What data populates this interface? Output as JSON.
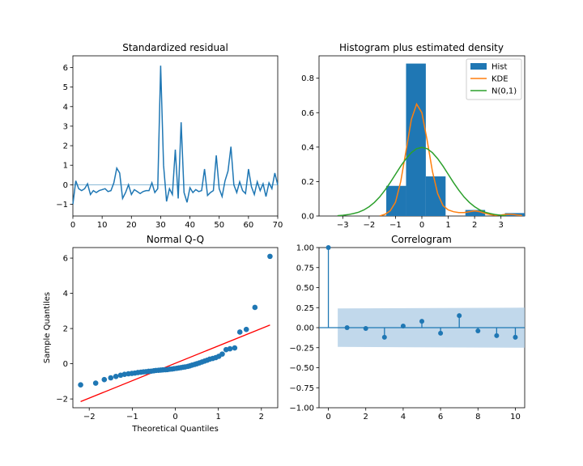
{
  "chart_data": [
    {
      "type": "line",
      "title": "Standardized residual",
      "xlabel": "",
      "ylabel": "",
      "xlim": [
        0,
        70
      ],
      "ylim": [
        -1.6,
        6.6
      ],
      "xticks": [
        0,
        10,
        20,
        30,
        40,
        50,
        60,
        70
      ],
      "yticks": [
        -1,
        0,
        1,
        2,
        3,
        4,
        5,
        6
      ],
      "x": [
        0,
        1,
        2,
        3,
        4,
        5,
        6,
        7,
        8,
        9,
        10,
        11,
        12,
        13,
        14,
        15,
        16,
        17,
        18,
        19,
        20,
        21,
        22,
        23,
        24,
        25,
        26,
        27,
        28,
        29,
        30,
        31,
        32,
        33,
        34,
        35,
        36,
        37,
        38,
        39,
        40,
        41,
        42,
        43,
        44,
        45,
        46,
        47,
        48,
        49,
        50,
        51,
        52,
        53,
        54,
        55,
        56,
        57,
        58,
        59,
        60,
        61,
        62,
        63,
        64,
        65,
        66,
        67,
        68,
        69,
        70
      ],
      "y": [
        -1.0,
        0.2,
        -0.2,
        -0.3,
        -0.2,
        0.05,
        -0.5,
        -0.3,
        -0.4,
        -0.3,
        -0.25,
        -0.2,
        -0.35,
        -0.3,
        0.1,
        0.85,
        0.6,
        -0.7,
        -0.4,
        0.0,
        -0.5,
        -0.25,
        -0.35,
        -0.45,
        -0.35,
        -0.3,
        -0.3,
        0.1,
        -0.4,
        -0.2,
        6.1,
        1.0,
        -0.85,
        -0.2,
        -0.5,
        1.8,
        -0.7,
        3.2,
        -0.4,
        -0.9,
        -0.15,
        -0.4,
        -0.25,
        -0.35,
        -0.3,
        0.8,
        -0.55,
        -0.4,
        -0.3,
        1.5,
        -0.2,
        -0.6,
        0.2,
        0.7,
        1.95,
        0.0,
        -0.4,
        0.15,
        -0.3,
        -0.45,
        0.8,
        -0.1,
        -0.5,
        0.15,
        -0.3,
        0.05,
        -0.6,
        0.1,
        -0.2,
        0.6,
        0.0
      ],
      "reference_line": 0,
      "grid": false
    },
    {
      "type": "histogram",
      "title": "Histogram plus estimated density",
      "xlim": [
        -3.9,
        3.9
      ],
      "ylim": [
        0,
        0.93
      ],
      "xticks": [
        -3,
        -2,
        -1,
        0,
        1,
        2,
        3
      ],
      "yticks": [
        0.0,
        0.2,
        0.4,
        0.6,
        0.8
      ],
      "bins": [
        {
          "start": -1.35,
          "end": -0.6,
          "height": 0.175
        },
        {
          "start": -0.6,
          "end": 0.15,
          "height": 0.885
        },
        {
          "start": 0.15,
          "end": 0.9,
          "height": 0.23
        },
        {
          "start": 1.65,
          "end": 2.4,
          "height": 0.035
        },
        {
          "start": 3.15,
          "end": 3.9,
          "height": 0.017
        }
      ],
      "kde": {
        "name": "KDE",
        "x": [
          -1.6,
          -1.4,
          -1.2,
          -1.0,
          -0.8,
          -0.6,
          -0.4,
          -0.2,
          0.0,
          0.2,
          0.4,
          0.6,
          0.8,
          1.0,
          1.2,
          1.4,
          1.6,
          1.8,
          2.0,
          2.2,
          2.4,
          2.6,
          2.8,
          3.0,
          3.2,
          3.4,
          3.6,
          3.8
        ],
        "y": [
          0.0,
          0.01,
          0.03,
          0.08,
          0.2,
          0.38,
          0.56,
          0.65,
          0.6,
          0.44,
          0.26,
          0.13,
          0.06,
          0.035,
          0.025,
          0.02,
          0.02,
          0.025,
          0.03,
          0.025,
          0.015,
          0.008,
          0.004,
          0.006,
          0.01,
          0.01,
          0.006,
          0.003
        ]
      },
      "normal": {
        "name": "N(0,1)",
        "mean": 0,
        "sd": 1,
        "x": [
          -3.2,
          -3.0,
          -2.8,
          -2.6,
          -2.4,
          -2.2,
          -2.0,
          -1.8,
          -1.6,
          -1.4,
          -1.2,
          -1.0,
          -0.8,
          -0.6,
          -0.4,
          -0.2,
          0.0,
          0.2,
          0.4,
          0.6,
          0.8,
          1.0,
          1.2,
          1.4,
          1.6,
          1.8,
          2.0,
          2.2,
          2.4,
          2.6,
          2.8,
          3.0,
          3.2
        ],
        "y": [
          0.002,
          0.004,
          0.008,
          0.014,
          0.022,
          0.035,
          0.054,
          0.079,
          0.111,
          0.15,
          0.194,
          0.242,
          0.29,
          0.333,
          0.368,
          0.391,
          0.399,
          0.391,
          0.368,
          0.333,
          0.29,
          0.242,
          0.194,
          0.15,
          0.111,
          0.079,
          0.054,
          0.035,
          0.022,
          0.014,
          0.008,
          0.004,
          0.002
        ]
      },
      "legend": {
        "position": "top-right",
        "entries": [
          "Hist",
          "KDE",
          "N(0,1)"
        ]
      },
      "colors": {
        "hist": "#1f77b4",
        "kde": "#ff7f0e",
        "normal": "#2ca02c"
      }
    },
    {
      "type": "scatter",
      "title": "Normal Q-Q",
      "xlabel": "Theoretical Quantiles",
      "ylabel": "Sample Quantiles",
      "xlim": [
        -2.38,
        2.38
      ],
      "ylim": [
        -2.5,
        6.6
      ],
      "xticks": [
        -2,
        -1,
        0,
        1,
        2
      ],
      "yticks": [
        -2,
        0,
        2,
        4,
        6
      ],
      "points": {
        "x": [
          -2.2,
          -1.85,
          -1.65,
          -1.5,
          -1.38,
          -1.27,
          -1.18,
          -1.09,
          -1.01,
          -0.94,
          -0.87,
          -0.8,
          -0.74,
          -0.68,
          -0.62,
          -0.56,
          -0.5,
          -0.45,
          -0.39,
          -0.34,
          -0.29,
          -0.23,
          -0.18,
          -0.13,
          -0.08,
          -0.03,
          0.03,
          0.08,
          0.13,
          0.18,
          0.23,
          0.29,
          0.34,
          0.39,
          0.45,
          0.5,
          0.56,
          0.62,
          0.68,
          0.74,
          0.8,
          0.87,
          0.94,
          1.01,
          1.09,
          1.18,
          1.27,
          1.38,
          1.5,
          1.65,
          1.85,
          2.2
        ],
        "y": [
          -1.2,
          -1.1,
          -0.9,
          -0.8,
          -0.72,
          -0.65,
          -0.6,
          -0.57,
          -0.55,
          -0.53,
          -0.5,
          -0.48,
          -0.46,
          -0.45,
          -0.43,
          -0.42,
          -0.4,
          -0.38,
          -0.37,
          -0.36,
          -0.35,
          -0.34,
          -0.33,
          -0.31,
          -0.3,
          -0.28,
          -0.26,
          -0.24,
          -0.22,
          -0.2,
          -0.18,
          -0.15,
          -0.12,
          -0.08,
          -0.04,
          0.0,
          0.05,
          0.1,
          0.15,
          0.2,
          0.26,
          0.3,
          0.35,
          0.42,
          0.55,
          0.8,
          0.85,
          0.9,
          1.8,
          1.95,
          3.2,
          6.1
        ]
      },
      "reference_line": {
        "x": [
          -2.2,
          2.2
        ],
        "y": [
          -2.15,
          2.2
        ]
      },
      "colors": {
        "points": "#1f77b4",
        "line": "#ff0000"
      }
    },
    {
      "type": "stem",
      "title": "Correlogram",
      "xlim": [
        -0.5,
        10.5
      ],
      "ylim": [
        -1.0,
        1.0
      ],
      "xticks": [
        0,
        2,
        4,
        6,
        8,
        10
      ],
      "yticks": [
        -1.0,
        -0.75,
        -0.5,
        -0.25,
        0.0,
        0.25,
        0.5,
        0.75,
        1.0
      ],
      "lags": [
        0,
        1,
        2,
        3,
        4,
        5,
        6,
        7,
        8,
        9,
        10
      ],
      "values": [
        1.0,
        0.0,
        -0.01,
        -0.12,
        0.02,
        0.08,
        -0.07,
        0.15,
        -0.04,
        -0.1,
        -0.12
      ],
      "confidence_band": {
        "x_from": 0.5,
        "x_to": 10.5,
        "upper_start": 0.24,
        "upper_end": 0.25,
        "lower_start": -0.24,
        "lower_end": -0.25
      },
      "colors": {
        "stem": "#1f77b4",
        "band": "#a6c8e3"
      }
    }
  ]
}
